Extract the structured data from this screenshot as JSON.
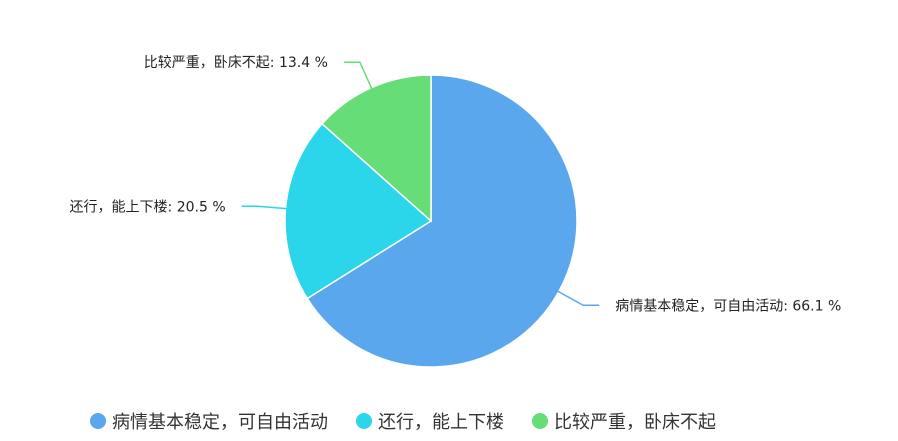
{
  "chart_data": {
    "type": "pie",
    "title": "",
    "start_angle": "top, clockwise",
    "slices": [
      {
        "name": "病情基本稳定，可自由活动",
        "value": 66.1,
        "label": "病情基本稳定，可自由活动: 66.1 %",
        "color": "#5ba7ee"
      },
      {
        "name": "还行，能上下楼",
        "value": 20.5,
        "label": "还行，能上下楼: 20.5 %",
        "color": "#2cd6ea"
      },
      {
        "name": "比较严重，卧床不起",
        "value": 13.4,
        "label": "比较严重，卧床不起: 13.4 %",
        "color": "#66dd77"
      }
    ],
    "legend_position": "bottom"
  }
}
